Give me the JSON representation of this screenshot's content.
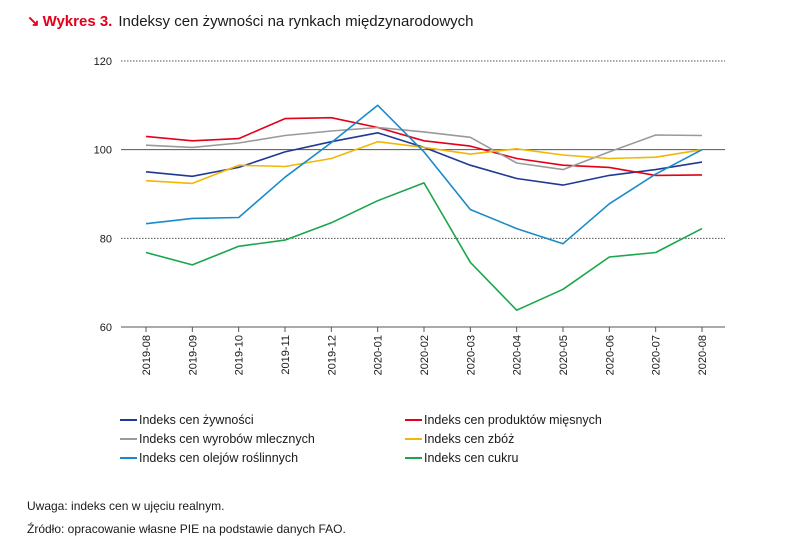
{
  "header": {
    "arrow": "↘",
    "prefix": "Wykres 3.",
    "title": "Indeksy cen żywności na rynkach międzynarodowych"
  },
  "chart_data": {
    "type": "line",
    "title": "Indeksy cen żywności na rynkach międzynarodowych",
    "xlabel": "",
    "ylabel": "",
    "ylim": [
      60,
      120
    ],
    "yticks": [
      60,
      80,
      100,
      120
    ],
    "grid": "horizontal dotted at 80 and 120, solid at 100",
    "legend_position": "bottom",
    "categories": [
      "2019-08",
      "2019-09",
      "2019-10",
      "2019-11",
      "2019-12",
      "2020-01",
      "2020-02",
      "2020-03",
      "2020-04",
      "2020-05",
      "2020-06",
      "2020-07",
      "2020-08"
    ],
    "series": [
      {
        "name": "Indeks cen żywności",
        "color": "#1f3a93",
        "values": [
          95.0,
          94.0,
          96.0,
          99.5,
          101.8,
          103.8,
          100.5,
          96.5,
          93.5,
          92.0,
          94.2,
          95.5,
          97.2
        ]
      },
      {
        "name": "Indeks cen produktów mięsnych",
        "color": "#e2001a",
        "values": [
          103.0,
          102.0,
          102.5,
          107.0,
          107.2,
          105.0,
          102.0,
          100.8,
          98.0,
          96.5,
          96.0,
          94.2,
          94.3
        ]
      },
      {
        "name": "Indeks cen wyrobów mlecznych",
        "color": "#9a9a9a",
        "values": [
          101.0,
          100.5,
          101.5,
          103.2,
          104.2,
          105.0,
          104.0,
          102.8,
          97.0,
          95.5,
          99.5,
          103.3,
          103.2
        ]
      },
      {
        "name": "Indeks cen zbóż",
        "color": "#f2b705",
        "values": [
          93.0,
          92.4,
          96.5,
          96.2,
          98.0,
          101.8,
          100.5,
          99.0,
          100.2,
          98.8,
          98.0,
          98.3,
          100.0
        ]
      },
      {
        "name": "Indeks cen olejów roślinnych",
        "color": "#1a8bc9",
        "values": [
          83.3,
          84.5,
          84.7,
          93.8,
          101.6,
          110.0,
          99.5,
          86.5,
          82.2,
          78.8,
          87.8,
          94.5,
          100.0
        ]
      },
      {
        "name": "Indeks cen cukru",
        "color": "#1aa64a",
        "values": [
          76.8,
          74.0,
          78.2,
          79.6,
          83.5,
          88.5,
          92.5,
          74.6,
          63.8,
          68.5,
          75.8,
          76.8,
          82.2
        ]
      }
    ]
  },
  "legend": {
    "items": [
      {
        "label": "Indeks cen żywności",
        "color": "#1f3a93"
      },
      {
        "label": "Indeks cen produktów mięsnych",
        "color": "#e2001a"
      },
      {
        "label": "Indeks cen wyrobów mlecznych",
        "color": "#9a9a9a"
      },
      {
        "label": "Indeks cen zbóż",
        "color": "#f2b705"
      },
      {
        "label": "Indeks cen olejów roślinnych",
        "color": "#1a8bc9"
      },
      {
        "label": "Indeks cen cukru",
        "color": "#1aa64a"
      }
    ]
  },
  "notes": {
    "remark": "Uwaga: indeks cen w ujęciu realnym.",
    "source": "Źródło: opracowanie własne PIE na podstawie danych FAO."
  }
}
